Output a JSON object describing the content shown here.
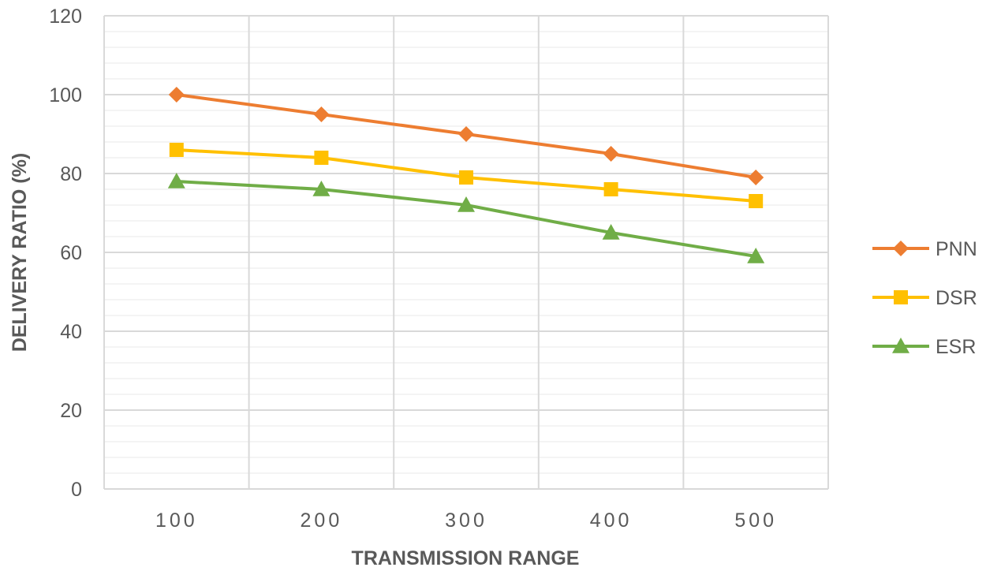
{
  "chart_data": {
    "type": "line",
    "title": "",
    "xlabel": "TRANSMISSION RANGE",
    "ylabel": "DELIVERY RATIO (%)",
    "categories": [
      "100",
      "200",
      "300",
      "400",
      "500"
    ],
    "ylim": [
      0,
      120
    ],
    "yticks": [
      0,
      20,
      40,
      60,
      80,
      100,
      120
    ],
    "minor_grid_step": 4,
    "grid": true,
    "legend_position": "right",
    "series": [
      {
        "name": "PNN",
        "color": "#ED7D31",
        "marker": "diamond",
        "values": [
          100,
          95,
          90,
          85,
          79
        ]
      },
      {
        "name": "DSR",
        "color": "#FFC000",
        "marker": "square",
        "values": [
          86,
          84,
          79,
          76,
          73
        ]
      },
      {
        "name": "ESR",
        "color": "#70AD47",
        "marker": "triangle",
        "values": [
          78,
          76,
          72,
          65,
          59
        ]
      }
    ]
  }
}
